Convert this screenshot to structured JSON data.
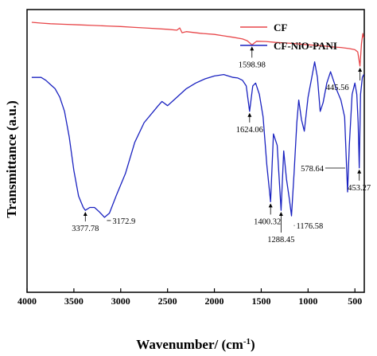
{
  "chart_data": {
    "type": "line",
    "xlabel": "Wavenumber/ (cm",
    "xlabel_sup": "-1",
    "xlabel_end": ")",
    "ylabel": "Transmittance (a.u.)",
    "xlim": [
      4000,
      400
    ],
    "xticks": [
      "4000",
      "3500",
      "3000",
      "2500",
      "2000",
      "1500",
      "1000",
      "500"
    ],
    "xtick_values": [
      4000,
      3500,
      3000,
      2500,
      2000,
      1500,
      1000,
      500
    ],
    "legend_position": "top-right",
    "series": [
      {
        "name": "CF",
        "color": "#e8474a",
        "points": [
          [
            3950,
            0.955
          ],
          [
            3850,
            0.952
          ],
          [
            3750,
            0.95
          ],
          [
            3600,
            0.948
          ],
          [
            3450,
            0.946
          ],
          [
            3300,
            0.944
          ],
          [
            3150,
            0.942
          ],
          [
            3000,
            0.94
          ],
          [
            2850,
            0.937
          ],
          [
            2700,
            0.934
          ],
          [
            2500,
            0.93
          ],
          [
            2400,
            0.927
          ],
          [
            2370,
            0.935
          ],
          [
            2345,
            0.918
          ],
          [
            2300,
            0.922
          ],
          [
            2150,
            0.916
          ],
          [
            2000,
            0.912
          ],
          [
            1900,
            0.907
          ],
          [
            1800,
            0.902
          ],
          [
            1700,
            0.896
          ],
          [
            1650,
            0.89
          ],
          [
            1598.98,
            0.875
          ],
          [
            1550,
            0.888
          ],
          [
            1450,
            0.887
          ],
          [
            1350,
            0.884
          ],
          [
            1250,
            0.882
          ],
          [
            1150,
            0.88
          ],
          [
            1050,
            0.877
          ],
          [
            950,
            0.874
          ],
          [
            850,
            0.872
          ],
          [
            750,
            0.868
          ],
          [
            650,
            0.866
          ],
          [
            560,
            0.862
          ],
          [
            500,
            0.858
          ],
          [
            470,
            0.85
          ],
          [
            445.56,
            0.8
          ],
          [
            430,
            0.88
          ],
          [
            415,
            0.915
          ],
          [
            405,
            0.9
          ]
        ]
      },
      {
        "name": "CF-NiO-PANI",
        "color": "#1a22c0",
        "points": [
          [
            3950,
            0.76
          ],
          [
            3850,
            0.76
          ],
          [
            3800,
            0.75
          ],
          [
            3750,
            0.735
          ],
          [
            3700,
            0.72
          ],
          [
            3650,
            0.69
          ],
          [
            3600,
            0.64
          ],
          [
            3550,
            0.55
          ],
          [
            3500,
            0.43
          ],
          [
            3450,
            0.34
          ],
          [
            3400,
            0.3
          ],
          [
            3377.78,
            0.29
          ],
          [
            3330,
            0.3
          ],
          [
            3280,
            0.3
          ],
          [
            3230,
            0.285
          ],
          [
            3172.9,
            0.265
          ],
          [
            3120,
            0.28
          ],
          [
            3050,
            0.34
          ],
          [
            2950,
            0.42
          ],
          [
            2850,
            0.53
          ],
          [
            2750,
            0.6
          ],
          [
            2650,
            0.64
          ],
          [
            2600,
            0.66
          ],
          [
            2560,
            0.675
          ],
          [
            2500,
            0.66
          ],
          [
            2450,
            0.675
          ],
          [
            2400,
            0.69
          ],
          [
            2300,
            0.72
          ],
          [
            2200,
            0.74
          ],
          [
            2100,
            0.755
          ],
          [
            2000,
            0.765
          ],
          [
            1900,
            0.77
          ],
          [
            1800,
            0.76
          ],
          [
            1750,
            0.758
          ],
          [
            1700,
            0.75
          ],
          [
            1660,
            0.73
          ],
          [
            1624.06,
            0.64
          ],
          [
            1590,
            0.73
          ],
          [
            1560,
            0.74
          ],
          [
            1520,
            0.7
          ],
          [
            1480,
            0.62
          ],
          [
            1440,
            0.45
          ],
          [
            1400.32,
            0.32
          ],
          [
            1370,
            0.56
          ],
          [
            1330,
            0.52
          ],
          [
            1288.45,
            0.29
          ],
          [
            1260,
            0.5
          ],
          [
            1230,
            0.4
          ],
          [
            1200,
            0.33
          ],
          [
            1176.58,
            0.27
          ],
          [
            1150,
            0.42
          ],
          [
            1120,
            0.6
          ],
          [
            1100,
            0.68
          ],
          [
            1070,
            0.61
          ],
          [
            1040,
            0.57
          ],
          [
            1000,
            0.69
          ],
          [
            960,
            0.76
          ],
          [
            930,
            0.815
          ],
          [
            900,
            0.76
          ],
          [
            870,
            0.64
          ],
          [
            840,
            0.67
          ],
          [
            800,
            0.74
          ],
          [
            760,
            0.78
          ],
          [
            700,
            0.72
          ],
          [
            650,
            0.68
          ],
          [
            610,
            0.62
          ],
          [
            578.64,
            0.355
          ],
          [
            560,
            0.52
          ],
          [
            530,
            0.7
          ],
          [
            500,
            0.74
          ],
          [
            480,
            0.7
          ],
          [
            465,
            0.6
          ],
          [
            453.27,
            0.44
          ],
          [
            440,
            0.7
          ],
          [
            420,
            0.76
          ],
          [
            405,
            0.77
          ]
        ]
      }
    ],
    "annotations": [
      {
        "label": "1598.98",
        "series": 0,
        "x": 1598.98
      },
      {
        "label": "445.56",
        "series": 0,
        "x": 445.56
      },
      {
        "label": "1624.06",
        "series": 1,
        "x": 1624.06
      },
      {
        "label": "3377.78",
        "series": 1,
        "x": 3377.78
      },
      {
        "label": "3172.9",
        "series": 1,
        "x": 3172.9
      },
      {
        "label": "1400.32",
        "series": 1,
        "x": 1400.32
      },
      {
        "label": "1288.45",
        "series": 1,
        "x": 1288.45
      },
      {
        "label": "1176.58",
        "series": 1,
        "x": 1176.58
      },
      {
        "label": "578.64",
        "series": 1,
        "x": 578.64
      },
      {
        "label": "453.27",
        "series": 1,
        "x": 453.27
      }
    ]
  }
}
